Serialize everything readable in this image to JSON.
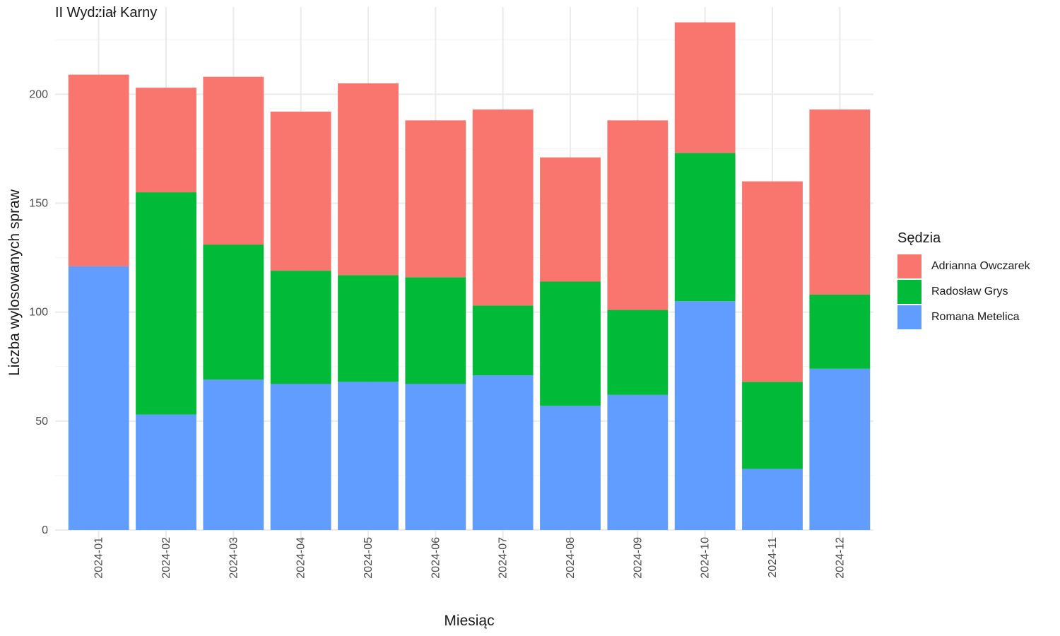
{
  "chart_data": {
    "type": "bar",
    "stacked": true,
    "subtitle": "II Wydział Karny",
    "xlabel": "Miesiąc",
    "ylabel": "Liczba wylosowanych spraw",
    "ylim": [
      0,
      240
    ],
    "yticks": [
      0,
      50,
      100,
      150,
      200
    ],
    "grid": true,
    "legend_title": "Sędzia",
    "legend_position": "right",
    "categories": [
      "2024-01",
      "2024-02",
      "2024-03",
      "2024-04",
      "2024-05",
      "2024-06",
      "2024-07",
      "2024-08",
      "2024-09",
      "2024-10",
      "2024-11",
      "2024-12"
    ],
    "series": [
      {
        "name": "Romana Metelica",
        "color": "#619CFF",
        "values": [
          121,
          53,
          69,
          67,
          68,
          67,
          71,
          57,
          62,
          105,
          28,
          74
        ]
      },
      {
        "name": "Radosław Grys",
        "color": "#00BA38",
        "values": [
          0,
          102,
          62,
          52,
          49,
          49,
          32,
          57,
          39,
          68,
          40,
          34
        ]
      },
      {
        "name": "Adrianna Owczarek",
        "color": "#F8766D",
        "values": [
          88,
          48,
          77,
          73,
          88,
          72,
          90,
          57,
          87,
          60,
          92,
          85
        ]
      }
    ],
    "legend_order": [
      "Adrianna Owczarek",
      "Radosław Grys",
      "Romana Metelica"
    ]
  }
}
